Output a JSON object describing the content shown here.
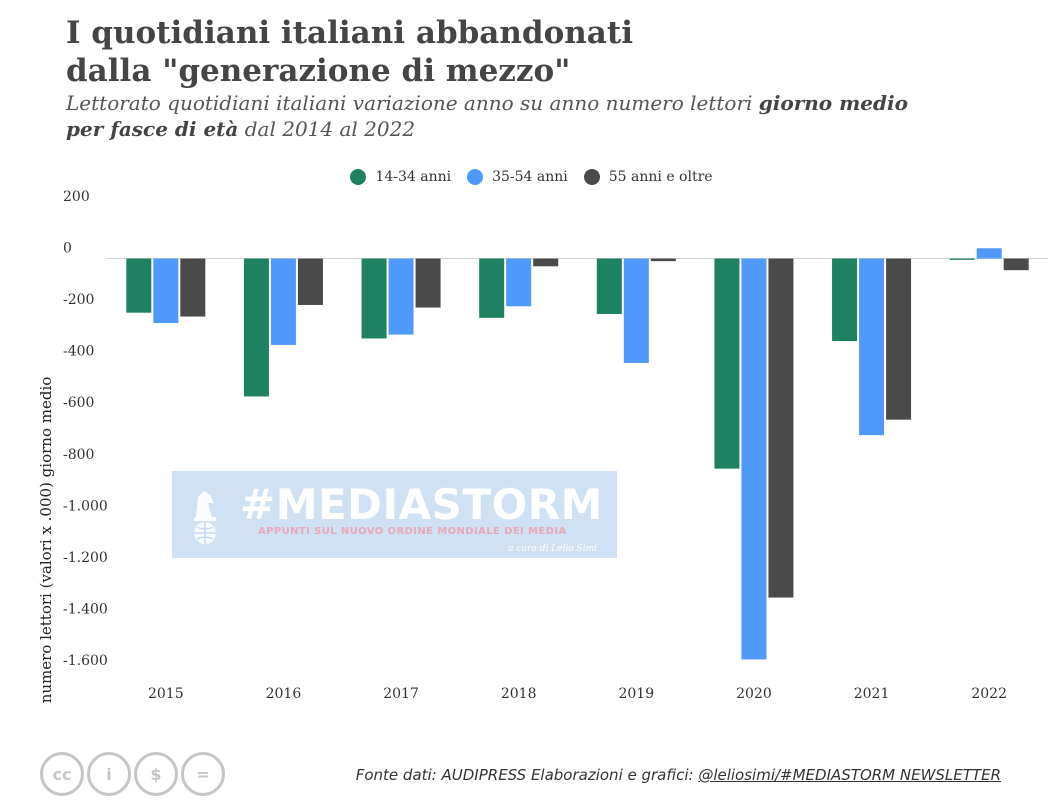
{
  "header": {
    "title_line1": "I quotidiani italiani abbandonati",
    "title_line2": "dalla \"generazione di mezzo\"",
    "subtitle_part1": "Lettorato quotidiani italiani variazione anno su anno numero lettori ",
    "subtitle_bold1": "giorno medio",
    "subtitle_bold2": "per fasce di età",
    "subtitle_part2": " dal 2014 al 2022"
  },
  "legend": {
    "items": [
      {
        "label": "14-34 anni",
        "color": "#1e8262"
      },
      {
        "label": "35-54 anni",
        "color": "#4f99fb"
      },
      {
        "label": "55 anni e oltre",
        "color": "#4a4a4a"
      }
    ]
  },
  "chart_data": {
    "type": "bar",
    "categories": [
      "2015",
      "2016",
      "2017",
      "2018",
      "2019",
      "2020",
      "2021",
      "2022"
    ],
    "series": [
      {
        "name": "14-34 anni",
        "color": "#1e8262",
        "values": [
          -210,
          -535,
          -310,
          -230,
          -215,
          -815,
          -320,
          -5
        ]
      },
      {
        "name": "35-54 anni",
        "color": "#4f99fb",
        "values": [
          -250,
          -335,
          -295,
          -185,
          -405,
          -1555,
          -685,
          40
        ]
      },
      {
        "name": "55 anni e oltre",
        "color": "#4a4a4a",
        "values": [
          -225,
          -180,
          -190,
          -30,
          -10,
          -1315,
          -625,
          -45
        ]
      }
    ],
    "title": "I quotidiani italiani abbandonati dalla \"generazione di mezzo\"",
    "xlabel": "",
    "ylabel": "numero lettori (valori x .000) giorno medio",
    "ylim": [
      -1600,
      200
    ],
    "yticks": [
      200,
      0,
      -200,
      -400,
      -600,
      -800,
      -1000,
      -1200,
      -1400,
      -1600
    ],
    "ytick_labels": [
      "200",
      "0",
      "-200",
      "-400",
      "-600",
      "-800",
      "-1.000",
      "-1.200",
      "-1.400",
      "-1.600"
    ],
    "grid": false,
    "legend_position": "top-center"
  },
  "watermark": {
    "main": "#MEDIASTORM",
    "sub": "APPUNTI SUL NUOVO ORDINE MONDIALE DEI MEDIA",
    "credit": "a cura di Lelio Simi",
    "logo_icon": "knight-globe-icon"
  },
  "license": {
    "icons": [
      {
        "name": "cc-icon",
        "glyph": "cc"
      },
      {
        "name": "by-attribution-icon",
        "glyph": "i"
      },
      {
        "name": "noncommercial-icon",
        "glyph": "$"
      },
      {
        "name": "noderivatives-icon",
        "glyph": "="
      }
    ]
  },
  "footer": {
    "source": "Fonte dati: AUDIPRESS  Elaborazioni e grafici: ",
    "handle": "@leliosimi/#MEDIASTORM NEWSLETTER"
  }
}
